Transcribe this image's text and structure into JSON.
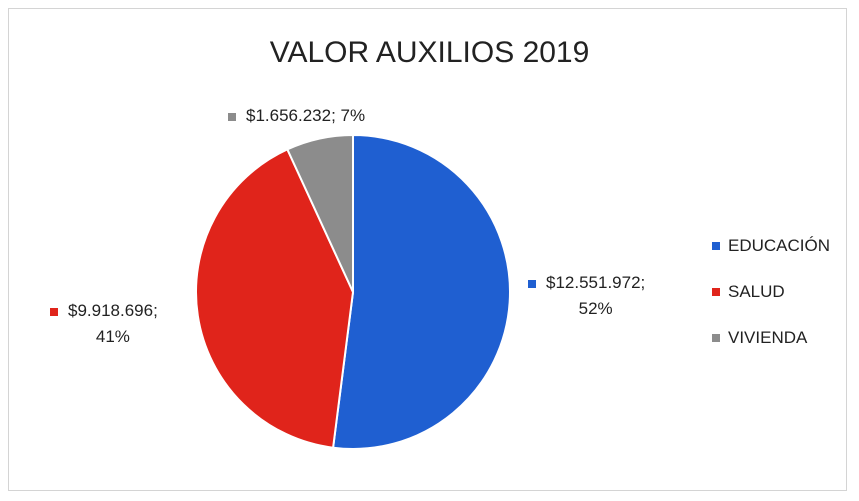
{
  "chart_data": {
    "type": "pie",
    "title": "VALOR AUXILIOS 2019",
    "categories": [
      "EDUCACIÓN",
      "SALUD",
      "VIVIENDA"
    ],
    "values": [
      12551972,
      9918696,
      1656232
    ],
    "percentages": [
      52,
      41,
      7
    ],
    "colors": [
      "#1f5fd1",
      "#e0241b",
      "#8c8c8c"
    ],
    "data_labels": [
      {
        "line1": "$12.551.972;",
        "line2": "52%"
      },
      {
        "line1": "$9.918.696;",
        "line2": "41%"
      },
      {
        "line1": "$1.656.232; 7%",
        "line2": ""
      }
    ],
    "legend": {
      "placement": "right",
      "entries": [
        "EDUCACIÓN",
        "SALUD",
        "VIVIENDA"
      ]
    }
  }
}
